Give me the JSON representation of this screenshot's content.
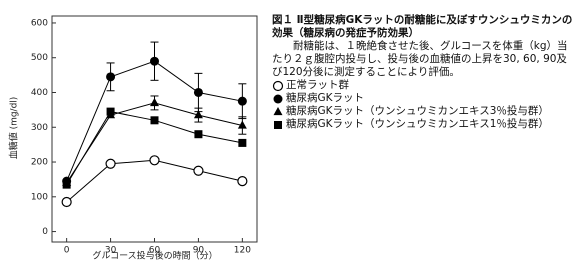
{
  "caption": {
    "title": "図１ Ⅱ型糖尿病GKラットの耐糖能に及ぼすウンシュウミカンの効果（糖尿病の発症予防効果）",
    "body": "耐糖能は、１晩絶食させた後、グルコースを体重（kg）当たり２ｇ腹腔内投与し、投与後の血糖値の上昇を30, 60, 90及び120分後に測定することにより評価。"
  },
  "chart_data": {
    "type": "line",
    "xlabel": "グルコース投与後の時間（分）",
    "ylabel": "血糖値 (mg/dl)",
    "x": [
      0,
      30,
      60,
      90,
      120
    ],
    "xlim": [
      -10,
      130
    ],
    "xticks": [
      0,
      30,
      60,
      90,
      120
    ],
    "ylim": [
      -30,
      620
    ],
    "yticks": [
      0,
      100,
      200,
      300,
      400,
      500,
      600
    ],
    "series": [
      {
        "name": "正常ラット群",
        "color": "#000000",
        "marker": "circle-open",
        "values": [
          85,
          195,
          205,
          175,
          145
        ]
      },
      {
        "name": "糖尿病GKラット",
        "color": "#000000",
        "marker": "circle",
        "values": [
          145,
          445,
          490,
          400,
          375
        ],
        "errors": [
          null,
          40,
          55,
          55,
          50
        ]
      },
      {
        "name": "糖尿病GKラット（ウンシュウミカンエキス3％投与群）",
        "color": "#000000",
        "marker": "triangle",
        "values": [
          140,
          335,
          370,
          335,
          305
        ],
        "errors": [
          null,
          null,
          20,
          20,
          25
        ]
      },
      {
        "name": "糖尿病GKラット（ウンシュウミカンエキス1％投与群）",
        "color": "#000000",
        "marker": "square",
        "values": [
          135,
          345,
          320,
          280,
          255
        ]
      }
    ]
  }
}
